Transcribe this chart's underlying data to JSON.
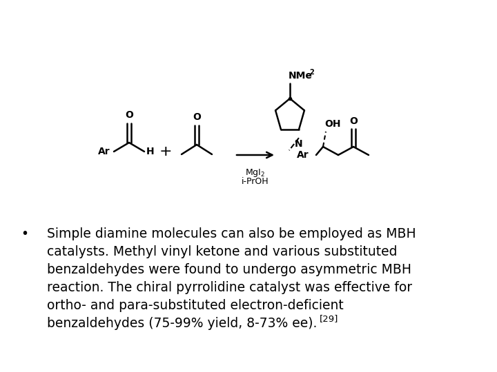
{
  "background_color": "#ffffff",
  "figsize": [
    7.2,
    5.4
  ],
  "dpi": 100,
  "font_family": "DejaVu Sans",
  "text_color": "#000000",
  "bullet_lines": [
    "Simple diamine molecules can also be employed as MBH",
    "catalysts. Methyl vinyl ketone and various substituted",
    "benzaldehydes were found to undergo asymmetric MBH",
    "reaction. The chiral pyrrolidine catalyst was effective for",
    "ortho- and para-substituted electron-deficient",
    "benzaldehydes (75-99% yield, 8-73% ee)."
  ],
  "superscript": "[29]",
  "bullet_fontsize": 13.5,
  "chem_fontsize": 10,
  "chem_small_fontsize": 9
}
